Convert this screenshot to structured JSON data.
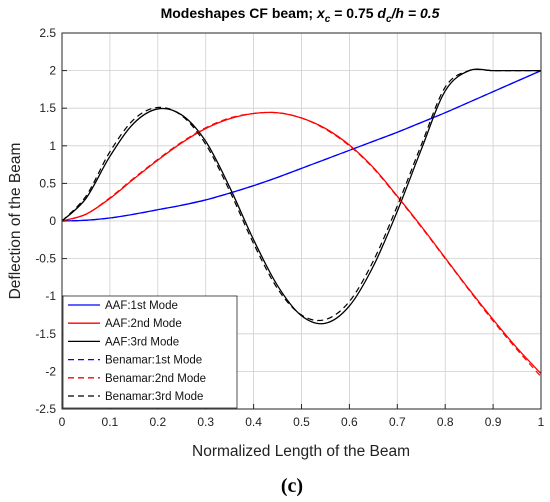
{
  "chart_data": {
    "type": "line",
    "title_main": "Modeshapes CF beam; ",
    "title_xc": "x",
    "title_xc_sub": "c",
    "title_xc_val": " = 0.75   ",
    "title_dc": "d",
    "title_dc_sub": "c",
    "title_dc_rest": "/h = 0.5",
    "xlabel": "Normalized Length of the Beam",
    "ylabel": "Deflection of the Beam",
    "caption": "(c)",
    "xlim": [
      0,
      1
    ],
    "ylim": [
      -2.5,
      2.5
    ],
    "grid": true,
    "legend_position": "bottom-left",
    "xticks": [
      "0",
      "0.1",
      "0.2",
      "0.3",
      "0.4",
      "0.5",
      "0.6",
      "0.7",
      "0.8",
      "0.9",
      "1"
    ],
    "yticks": [
      "-2.5",
      "-2",
      "-1.5",
      "-1",
      "-0.5",
      "0",
      "0.5",
      "1",
      "1.5",
      "2",
      "2.5"
    ],
    "x": [
      0,
      0.05,
      0.1,
      0.15,
      0.2,
      0.25,
      0.3,
      0.35,
      0.4,
      0.45,
      0.5,
      0.55,
      0.6,
      0.65,
      0.7,
      0.75,
      0.8,
      0.85,
      0.9,
      0.95,
      1.0
    ],
    "series": [
      {
        "name": "AAF:1st Mode",
        "color": "#0000ff",
        "dash": "solid",
        "values": [
          0,
          0.01,
          0.04,
          0.09,
          0.15,
          0.21,
          0.28,
          0.37,
          0.47,
          0.58,
          0.7,
          0.82,
          0.94,
          1.06,
          1.18,
          1.31,
          1.44,
          1.58,
          1.72,
          1.86,
          2.0
        ]
      },
      {
        "name": "AAF:2nd Mode",
        "color": "#ff0000",
        "dash": "solid",
        "values": [
          0,
          0.09,
          0.3,
          0.56,
          0.81,
          1.04,
          1.23,
          1.36,
          1.43,
          1.44,
          1.37,
          1.23,
          1.01,
          0.71,
          0.33,
          -0.07,
          -0.49,
          -0.91,
          -1.31,
          -1.69,
          -2.03
        ]
      },
      {
        "name": "AAF:3rd Mode",
        "color": "#000000",
        "dash": "solid",
        "values": [
          0,
          0.3,
          0.86,
          1.3,
          1.49,
          1.41,
          1.06,
          0.45,
          -0.25,
          -0.86,
          -1.26,
          -1.36,
          -1.13,
          -0.6,
          0.13,
          0.95,
          1.73,
          2.0,
          2.0,
          2.0,
          2.0
        ]
      },
      {
        "name": "Benamar:1st Mode",
        "color": "#0000ff",
        "dash": "dashed",
        "values": [
          0,
          0.01,
          0.04,
          0.09,
          0.15,
          0.21,
          0.28,
          0.37,
          0.47,
          0.58,
          0.7,
          0.82,
          0.94,
          1.06,
          1.18,
          1.31,
          1.44,
          1.58,
          1.72,
          1.86,
          2.0
        ]
      },
      {
        "name": "Benamar:2nd Mode",
        "color": "#ff0000",
        "dash": "dashed",
        "values": [
          0,
          0.09,
          0.31,
          0.57,
          0.82,
          1.05,
          1.24,
          1.37,
          1.43,
          1.44,
          1.37,
          1.22,
          1.0,
          0.7,
          0.32,
          -0.08,
          -0.5,
          -0.92,
          -1.33,
          -1.71,
          -2.07
        ]
      },
      {
        "name": "Benamar:3rd Mode",
        "color": "#000000",
        "dash": "dashed",
        "values": [
          0,
          0.33,
          0.92,
          1.35,
          1.51,
          1.4,
          1.02,
          0.4,
          -0.3,
          -0.9,
          -1.25,
          -1.31,
          -1.07,
          -0.53,
          0.2,
          1.01,
          1.78,
          2.0,
          2.0,
          2.0,
          2.0
        ]
      }
    ]
  }
}
